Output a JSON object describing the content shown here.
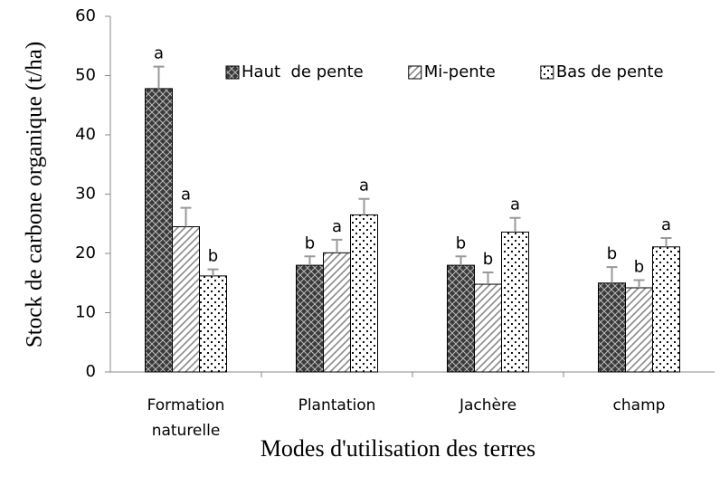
{
  "chart_data": {
    "type": "bar",
    "y_label": "Stock de carbone organique (t/ha)",
    "x_label": "Modes d'utilisation des terres",
    "categories": [
      "Formation naturelle",
      "Plantation",
      "Jachère",
      "champ"
    ],
    "series": [
      {
        "name": "Haut  de pente",
        "color": "#3a3a3a",
        "pattern": "crosshatch",
        "values": [
          47.8,
          18,
          18,
          15
        ],
        "errors": [
          3.7,
          1.5,
          1.5,
          2.7
        ],
        "labels": [
          "a",
          "b",
          "b",
          "b"
        ]
      },
      {
        "name": "Mi-pente",
        "color": "#8a8a8a",
        "pattern": "diagonal",
        "values": [
          24.5,
          20.1,
          14.8,
          14.2
        ],
        "errors": [
          3.2,
          2.2,
          2,
          1.3
        ],
        "labels": [
          "a",
          "a",
          "b",
          "b"
        ]
      },
      {
        "name": "Bas de pente",
        "color": "#111111",
        "pattern": "dots",
        "values": [
          16.2,
          26.5,
          23.6,
          21.1
        ],
        "errors": [
          1.1,
          2.7,
          2.4,
          1.5
        ],
        "labels": [
          "b",
          "a",
          "a",
          "a"
        ]
      }
    ],
    "ylim": [
      0,
      60
    ],
    "yticks": [
      0,
      10,
      20,
      30,
      40,
      50,
      60
    ],
    "grid": false,
    "legend": "top",
    "error_color": "#999999"
  }
}
